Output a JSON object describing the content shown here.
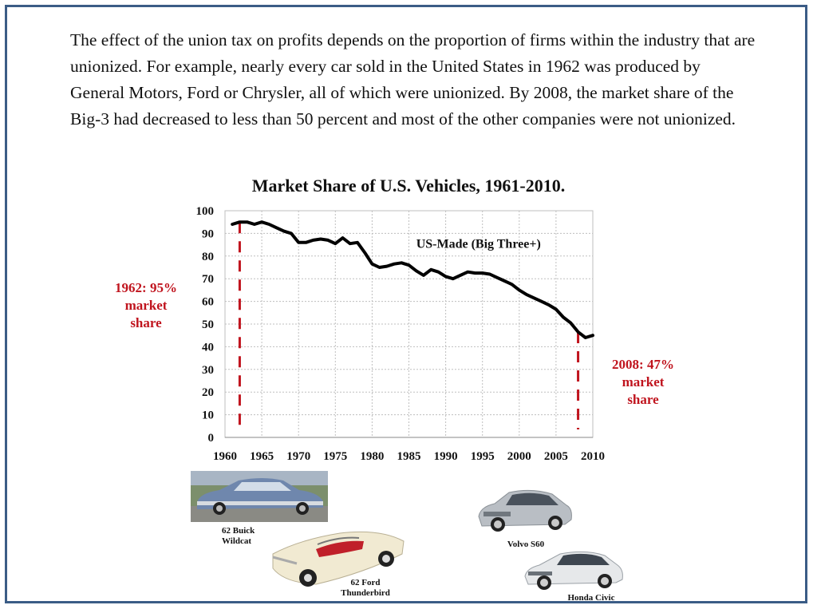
{
  "paragraph": "The effect of the union tax on profits depends on the proportion of firms within the industry that are unionized. For example, nearly every car sold in the United States in 1962 was produced by General Motors, Ford or Chrysler, all of which were unionized. By 2008, the market share of the Big-3 had decreased to less than 50 percent and most of the other companies were not unionized.",
  "chart_data": {
    "type": "line",
    "title": "Market Share of U.S. Vehicles, 1961-2010.",
    "xlabel": "",
    "ylabel": "",
    "xlim": [
      1960,
      2010
    ],
    "ylim": [
      0,
      100
    ],
    "x_ticks": [
      1960,
      1965,
      1970,
      1975,
      1980,
      1985,
      1990,
      1995,
      2000,
      2005,
      2010
    ],
    "y_ticks": [
      0,
      10,
      20,
      30,
      40,
      50,
      60,
      70,
      80,
      90,
      100
    ],
    "grid": true,
    "series": [
      {
        "name": "US-Made (Big Three+)",
        "color": "#000000",
        "x": [
          1961,
          1962,
          1963,
          1964,
          1965,
          1966,
          1967,
          1968,
          1969,
          1970,
          1971,
          1972,
          1973,
          1974,
          1975,
          1976,
          1977,
          1978,
          1979,
          1980,
          1981,
          1982,
          1983,
          1984,
          1985,
          1986,
          1987,
          1988,
          1989,
          1990,
          1991,
          1992,
          1993,
          1994,
          1995,
          1996,
          1997,
          1998,
          1999,
          2000,
          2001,
          2002,
          2003,
          2004,
          2005,
          2006,
          2007,
          2008,
          2009,
          2010
        ],
        "y": [
          94,
          95,
          95,
          94,
          95,
          94,
          92.5,
          91,
          90,
          86,
          86,
          87,
          87.5,
          87,
          85.5,
          88,
          85.5,
          86,
          81.5,
          76.5,
          75,
          75.5,
          76.5,
          77,
          76,
          73.5,
          71.5,
          74,
          73,
          71,
          70,
          71.5,
          73,
          72.5,
          72.5,
          72,
          70.5,
          69,
          67.5,
          65,
          63,
          61.5,
          60,
          58.5,
          56.5,
          53,
          50.5,
          46.5,
          44,
          45
        ]
      }
    ],
    "annotations": [
      {
        "label": "1962: 95% market share",
        "x": 1962,
        "color": "#c0141e"
      },
      {
        "label": "2008: 47% market share",
        "x": 2008,
        "color": "#c0141e"
      }
    ]
  },
  "annotations_text": {
    "left_lines": [
      "1962: 95%",
      "market",
      "share"
    ],
    "right_lines": [
      "2008: 47%",
      "market",
      "share"
    ]
  },
  "photos": [
    {
      "caption_lines": [
        "62 Buick",
        "Wildcat"
      ]
    },
    {
      "caption_lines": [
        "62 Ford",
        "Thunderbird"
      ]
    },
    {
      "caption_lines": [
        "Volvo S60"
      ]
    },
    {
      "caption_lines": [
        "Honda Civic"
      ]
    }
  ]
}
